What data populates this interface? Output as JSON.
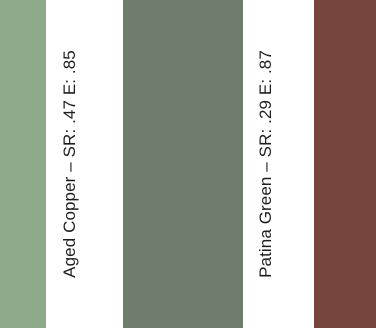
{
  "swatches": [
    {
      "name_label": "Aged Copper – SR: .47 E: .85",
      "color": "#8faa8b"
    },
    {
      "name_label": "",
      "color": "#6f7e6c"
    },
    {
      "name_label": "Patina Green – SR: .29 E: .87",
      "color": "#6f7e6c"
    },
    {
      "name_label": "",
      "color": "#76453c"
    }
  ],
  "colors": {
    "aged_copper_left": "#8faa8b",
    "aged_copper_middle": "#6f7e6c",
    "patina_green": "#6f7e6c",
    "dark_red": "#76453c",
    "background": "#ffffff"
  }
}
